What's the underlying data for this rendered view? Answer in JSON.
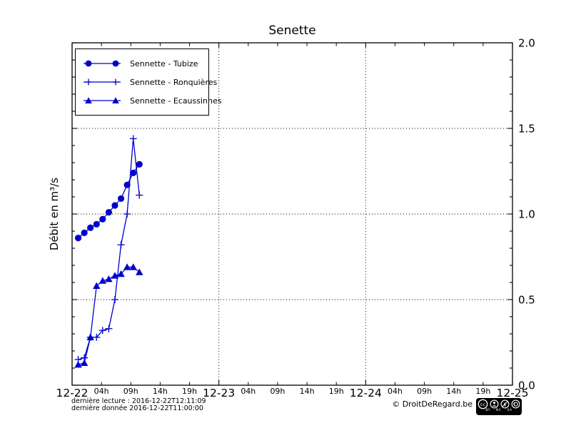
{
  "title": "Senette",
  "ylabel": "Débit en m³/s",
  "colors": {
    "series": "#0000cc",
    "axis": "#000000",
    "grid": "#000000",
    "background": "#ffffff"
  },
  "legend": {
    "items": [
      {
        "label": "Sennette - Tubize",
        "marker": "circle"
      },
      {
        "label": "Sennette - Ronquières",
        "marker": "plus"
      },
      {
        "label": "Sennette - Ecaussinnes",
        "marker": "triangle"
      }
    ]
  },
  "footer": {
    "line1": "dernière lecture : 2016-12-22T12:11:09",
    "line2": "dernière donnée  2016-12-22T11:00:00",
    "copyright": "© DroitDeRegard.be",
    "license": {
      "cc_text": "cc",
      "nc_text": "$",
      "labels": [
        "BY",
        "NC",
        "SA"
      ]
    }
  },
  "chart_data": {
    "type": "line",
    "title": "Senette",
    "xlabel": "",
    "ylabel": "Débit en m³/s",
    "ylim": [
      0.0,
      2.0
    ],
    "y_major_ticks": [
      0.0,
      0.5,
      1.0,
      1.5,
      2.0
    ],
    "y_tick_labels": [
      "0.0",
      "0.5",
      "1.0",
      "1.5",
      "2.0"
    ],
    "y_minor_step": 0.1,
    "y_label_side": "right",
    "grid": "dotted",
    "grid_y_values": [
      0.5,
      1.0,
      1.5
    ],
    "grid_x_hours": [
      24,
      48
    ],
    "x_range_hours": [
      0,
      72
    ],
    "x_day_labels": [
      "12-22",
      "12-23",
      "12-24",
      "12-25"
    ],
    "x_hour_labels": [
      "04h",
      "09h",
      "14h",
      "19h"
    ],
    "legend_position": "upper left",
    "x_hours": [
      1,
      2,
      3,
      4,
      5,
      6,
      7,
      8,
      9,
      10,
      11
    ],
    "x_times": [
      "01:00",
      "02:00",
      "03:00",
      "04:00",
      "05:00",
      "06:00",
      "07:00",
      "08:00",
      "09:00",
      "10:00",
      "11:00"
    ],
    "series": [
      {
        "name": "Sennette - Tubize",
        "marker": "circle",
        "values": [
          0.86,
          0.89,
          0.92,
          0.94,
          0.97,
          1.01,
          1.05,
          1.09,
          1.17,
          1.24,
          1.29
        ]
      },
      {
        "name": "Sennette - Ronquières",
        "marker": "plus",
        "values": [
          0.15,
          0.16,
          0.28,
          0.28,
          0.32,
          0.33,
          0.5,
          0.82,
          1.0,
          1.44,
          1.11
        ]
      },
      {
        "name": "Sennette - Ecaussinnes",
        "marker": "triangle",
        "values": [
          0.12,
          0.13,
          0.28,
          0.58,
          0.61,
          0.62,
          0.64,
          0.65,
          0.69,
          0.69,
          0.66
        ]
      }
    ]
  }
}
